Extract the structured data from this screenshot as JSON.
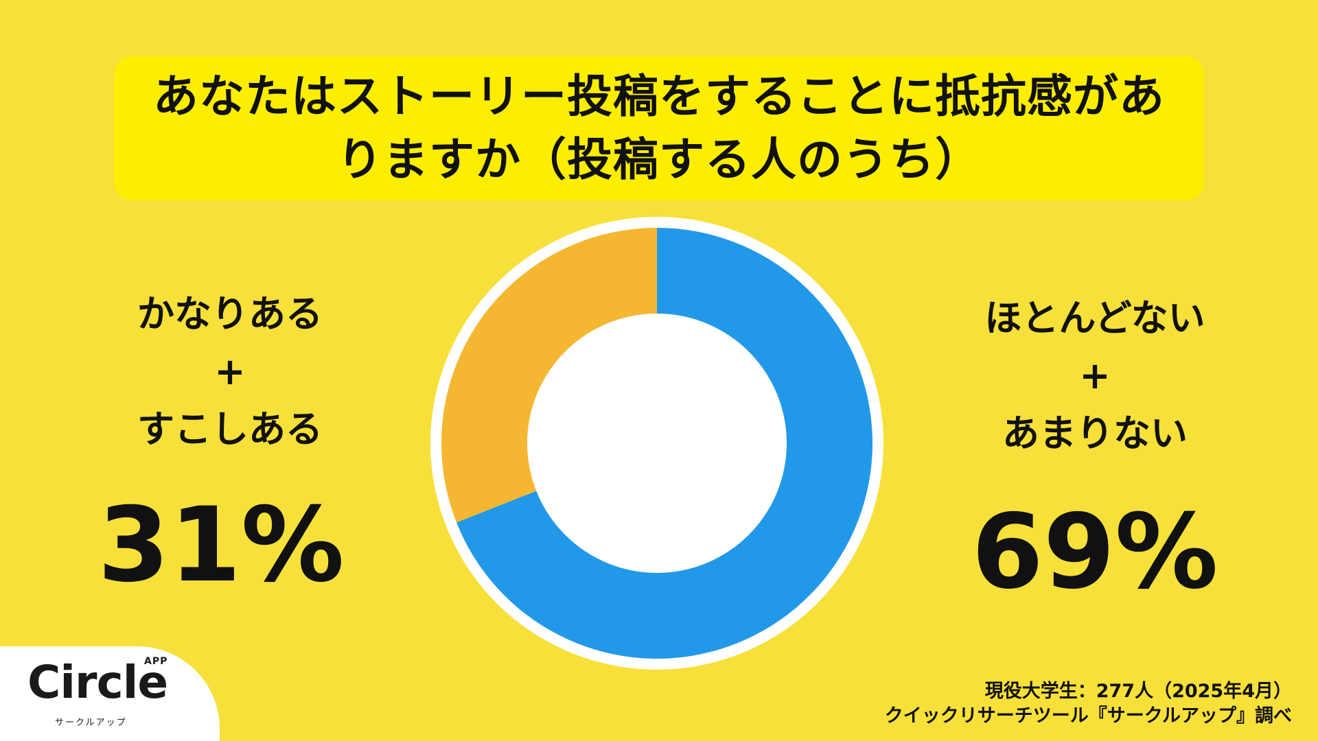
{
  "title": "あなたはストーリー投稿をすることに抵抗感がありますか（投稿する人のうち）",
  "left": {
    "line1": "かなりある",
    "plus": "+",
    "line2": "すこしある",
    "percent": "31%"
  },
  "right": {
    "line1": "ほとんどない",
    "plus": "+",
    "line2": "あまりない",
    "percent": "69%"
  },
  "source": {
    "line1": "現役大学生：277人（2025年4月）",
    "line2": "クイックリサーチツール『サークルアップ』調べ"
  },
  "logo": {
    "name": "Circle",
    "badge": "APP",
    "sub": "サークルアップ"
  },
  "colors": {
    "background": "#f7e03a",
    "title_box": "#fdee00",
    "segment_yes": "#f5b731",
    "segment_no": "#2299e8"
  },
  "chart_data": {
    "type": "pie",
    "categories": [
      "かなりある+すこしある",
      "ほとんどない+あまりない"
    ],
    "values": [
      31,
      69
    ],
    "colors": [
      "#f5b731",
      "#2299e8"
    ]
  }
}
